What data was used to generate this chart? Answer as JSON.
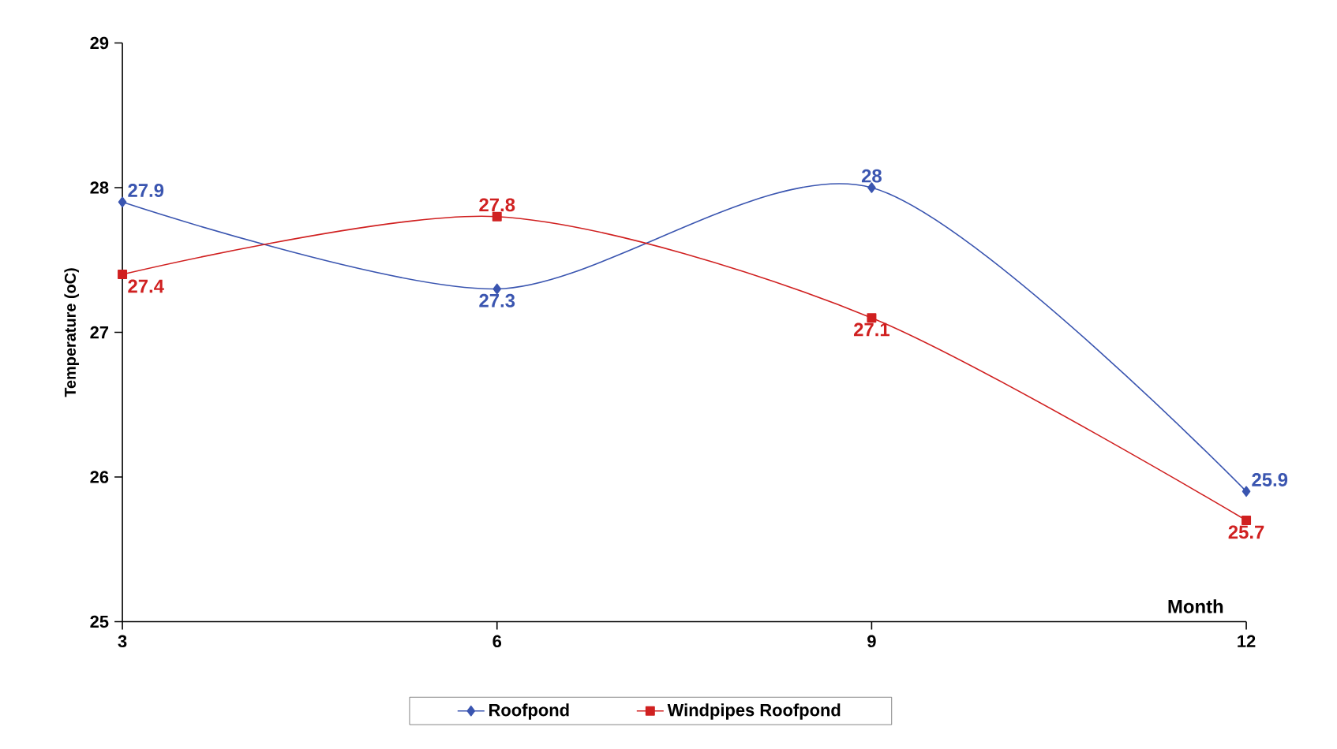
{
  "chart_data": {
    "type": "line",
    "ylabel": "Temperature (oC)",
    "xlabel": "Month",
    "x": [
      3,
      6,
      9,
      12
    ],
    "xlim": [
      3,
      12
    ],
    "xticks": [
      3,
      6,
      9,
      12
    ],
    "ylim": [
      25,
      29
    ],
    "yticks": [
      25,
      26,
      27,
      28,
      29
    ],
    "series": [
      {
        "name": "Roofpond",
        "color": "#3a55b0",
        "marker": "diamond",
        "values": [
          27.9,
          27.3,
          28,
          25.9
        ]
      },
      {
        "name": "Windpipes Roofpond",
        "color": "#d02020",
        "marker": "square",
        "values": [
          27.4,
          27.8,
          27.1,
          25.7
        ]
      }
    ],
    "data_labels": true,
    "legend": "bottom",
    "grid": false,
    "line_style": "solid"
  }
}
